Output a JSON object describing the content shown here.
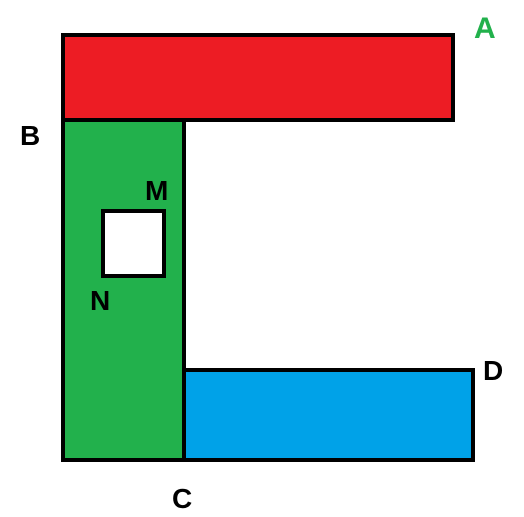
{
  "labels": {
    "a": "A",
    "b": "B",
    "c": "C",
    "d": "D",
    "m": "M",
    "n": "N"
  },
  "colors": {
    "top_bar": "#ed1c24",
    "left_bar": "#22b14c",
    "bottom_bar": "#00a2e8",
    "hole": "#ffffff",
    "outline": "#000000",
    "label_default": "#000000",
    "label_a": "#22b14c"
  }
}
